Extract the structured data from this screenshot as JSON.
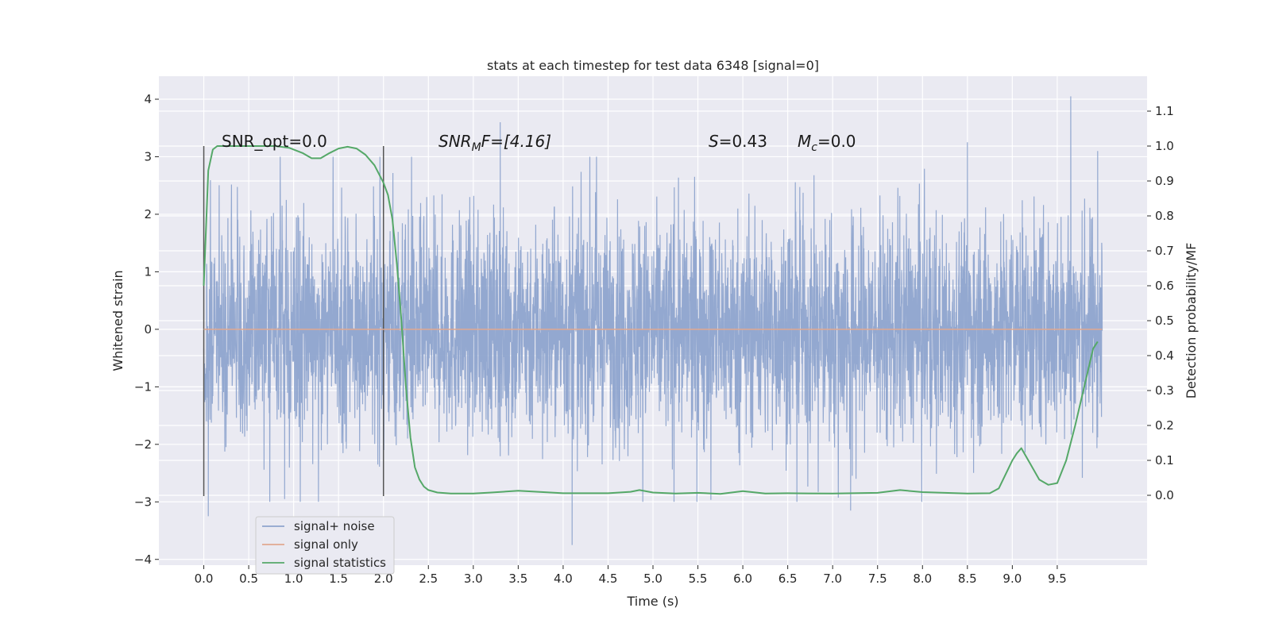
{
  "chart_data": {
    "type": "line",
    "title": "stats at each timestep for test data 6348 [signal=0]",
    "xlabel": "Time (s)",
    "ylabel": "Whitened strain",
    "ylabel_right": "Detection probability/MF",
    "xlim": [
      -0.5,
      10.5
    ],
    "ylim": [
      -4.1,
      4.4
    ],
    "ylim_right": [
      -0.2,
      1.2
    ],
    "x_ticks": [
      "0.0",
      "0.5",
      "1.0",
      "1.5",
      "2.0",
      "2.5",
      "3.0",
      "3.5",
      "4.0",
      "4.5",
      "5.0",
      "5.5",
      "6.0",
      "6.5",
      "7.0",
      "7.5",
      "8.0",
      "8.5",
      "9.0",
      "9.5"
    ],
    "y_ticks": [
      "4",
      "3",
      "2",
      "1",
      "0",
      "−1",
      "−2",
      "−3",
      "−4"
    ],
    "y_ticks_right": [
      "1.1",
      "1.0",
      "0.9",
      "0.8",
      "0.7",
      "0.6",
      "0.5",
      "0.4",
      "0.3",
      "0.2",
      "0.1",
      "0.0"
    ],
    "grid": true,
    "legend_position": "lower-left",
    "annotations": {
      "snr_opt": "SNR_opt=0.0",
      "snr_mf_label": "SNR",
      "snr_mf_sub": "M",
      "snr_mf_rest": "F=[4.16]",
      "s_label": "S",
      "s_value": "=0.43",
      "mc_label": "M",
      "mc_sub": "c",
      "mc_value": "=0.0"
    },
    "vertical_markers": [
      0.0,
      2.0
    ],
    "series": [
      {
        "name": "signal+ noise",
        "color": "#8ea4cd",
        "description_type": "noise",
        "x_range": [
          0.0,
          10.0
        ],
        "typical_envelope": [
          -1.5,
          1.5
        ],
        "extremes": [
          {
            "x": 0.05,
            "y": -3.25
          },
          {
            "x": 0.9,
            "y": -2.95
          },
          {
            "x": 3.3,
            "y": 3.6
          },
          {
            "x": 4.1,
            "y": -3.75
          },
          {
            "x": 7.2,
            "y": -3.15
          },
          {
            "x": 8.5,
            "y": 3.25
          },
          {
            "x": 9.65,
            "y": 4.05
          },
          {
            "x": 9.95,
            "y": 3.1
          }
        ]
      },
      {
        "name": "signal only",
        "color": "#e1a98f",
        "x": [
          0.0,
          10.0
        ],
        "y": [
          0.0,
          0.0
        ]
      },
      {
        "name": "signal statistics",
        "color": "#55a868",
        "axis": "right",
        "x": [
          0.0,
          0.05,
          0.1,
          0.15,
          0.25,
          0.4,
          0.6,
          0.8,
          0.95,
          1.1,
          1.2,
          1.3,
          1.4,
          1.5,
          1.6,
          1.7,
          1.8,
          1.9,
          2.0,
          2.05,
          2.1,
          2.15,
          2.2,
          2.25,
          2.3,
          2.35,
          2.4,
          2.45,
          2.5,
          2.6,
          2.75,
          3.0,
          3.2,
          3.5,
          4.0,
          4.5,
          4.75,
          4.85,
          5.0,
          5.25,
          5.5,
          5.75,
          6.0,
          6.25,
          6.5,
          7.0,
          7.5,
          7.75,
          8.0,
          8.5,
          8.75,
          8.85,
          9.0,
          9.05,
          9.1,
          9.2,
          9.3,
          9.4,
          9.5,
          9.6,
          9.7,
          9.8,
          9.9,
          9.95
        ],
        "y": [
          0.6,
          0.93,
          0.99,
          1.0,
          1.0,
          1.0,
          1.0,
          1.0,
          0.995,
          0.98,
          0.965,
          0.965,
          0.98,
          0.993,
          0.998,
          0.993,
          0.975,
          0.945,
          0.895,
          0.86,
          0.79,
          0.66,
          0.5,
          0.31,
          0.165,
          0.08,
          0.045,
          0.025,
          0.015,
          0.008,
          0.005,
          0.005,
          0.008,
          0.013,
          0.006,
          0.006,
          0.01,
          0.015,
          0.008,
          0.005,
          0.007,
          0.004,
          0.012,
          0.005,
          0.006,
          0.005,
          0.007,
          0.015,
          0.009,
          0.005,
          0.006,
          0.02,
          0.1,
          0.12,
          0.135,
          0.09,
          0.045,
          0.03,
          0.035,
          0.1,
          0.2,
          0.31,
          0.42,
          0.44
        ]
      }
    ]
  }
}
